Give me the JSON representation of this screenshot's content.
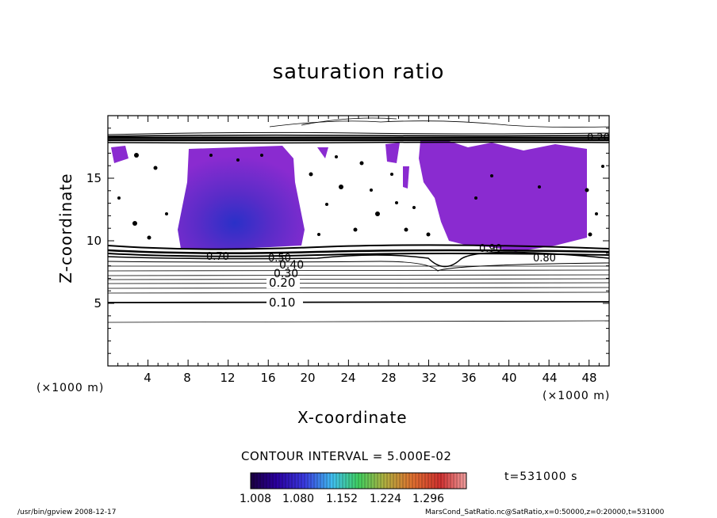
{
  "chart_data": {
    "type": "contour",
    "title": "saturation ratio",
    "xlabel": "X-coordinate",
    "ylabel": "Z-coordinate",
    "x_unit_left": "(×1000 m)",
    "x_unit_right": "(×1000 m)",
    "xlim": [
      0,
      50
    ],
    "ylim": [
      0,
      20
    ],
    "x_ticks": [
      "4",
      "8",
      "12",
      "16",
      "20",
      "24",
      "28",
      "32",
      "36",
      "40",
      "44",
      "48"
    ],
    "y_ticks": [
      "5",
      "10",
      "15"
    ],
    "contour_labels": [
      "0.10",
      "0.20",
      "0.30",
      "0.40",
      "0.50",
      "0.70",
      "0.80",
      "0.90",
      "0.20"
    ],
    "contour_interval": "CONTOUR INTERVAL = 5.000E-02",
    "colorbar": {
      "ticks": [
        "1.008",
        "1.080",
        "1.152",
        "1.224",
        "1.296"
      ],
      "colors": [
        "#1a0040",
        "#2b00a0",
        "#3a3ae0",
        "#40c0f0",
        "#40d060",
        "#b0b040",
        "#e07030",
        "#d03030",
        "#f0a0a0"
      ]
    },
    "fill_regions_color": "#8a2bd0",
    "time_label": "t=531000 s"
  },
  "footer": {
    "left": "/usr/bin/gpview   2008-12-17",
    "right": "MarsCond_SatRatio.nc@SatRatio,x=0:50000,z=0:20000,t=531000"
  }
}
